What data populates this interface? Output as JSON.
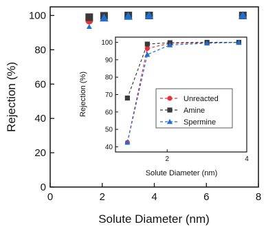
{
  "colors": {
    "Unreacted": "#e8323a",
    "Amine": "#3a3a3a",
    "Spermine": "#1f6fd0"
  },
  "chart_data": [
    {
      "type": "scatter",
      "title": "",
      "xlabel": "Solute Diameter (nm)",
      "ylabel": "Rejection (%)",
      "xlim": [
        0,
        8
      ],
      "ylim": [
        0,
        105
      ],
      "xticks": [
        0,
        2,
        4,
        6,
        8
      ],
      "yticks": [
        0,
        20,
        40,
        60,
        80,
        100
      ],
      "grid": false,
      "series": [
        {
          "name": "Unreacted",
          "marker": "circle",
          "x": [
            1.0,
            1.5,
            2.07,
            3.0,
            3.8,
            7.4
          ],
          "y": [
            42.5,
            97,
            99.5,
            99.8,
            100,
            100
          ]
        },
        {
          "name": "Amine",
          "marker": "square",
          "x": [
            1.0,
            1.5,
            2.07,
            3.0,
            3.8,
            7.4
          ],
          "y": [
            68,
            99,
            99.8,
            100,
            100,
            100
          ]
        },
        {
          "name": "Spermine",
          "marker": "triangle",
          "x": [
            1.0,
            1.5,
            2.07,
            3.0,
            3.8,
            7.4
          ],
          "y": [
            42.5,
            92.5,
            98.5,
            99.5,
            100,
            100
          ]
        }
      ]
    },
    {
      "type": "line",
      "title": "",
      "xlabel": "Solute Diameter (nm)",
      "ylabel": "Rejection (%)",
      "xlim": [
        0.7,
        4.0
      ],
      "ylim": [
        37,
        103
      ],
      "xticks": [
        2,
        4
      ],
      "yticks": [
        40,
        50,
        60,
        70,
        80,
        90,
        100
      ],
      "grid": false,
      "legend_position": "center-right",
      "series": [
        {
          "name": "Unreacted",
          "marker": "circle",
          "x": [
            1.0,
            1.5,
            2.07,
            3.0,
            3.8
          ],
          "y": [
            42.5,
            96.5,
            99.5,
            99.8,
            100
          ]
        },
        {
          "name": "Amine",
          "marker": "square",
          "x": [
            1.0,
            1.5,
            2.07,
            3.0,
            3.8
          ],
          "y": [
            68,
            99,
            99.8,
            100,
            100
          ]
        },
        {
          "name": "Spermine",
          "marker": "triangle",
          "x": [
            1.0,
            1.5,
            2.07,
            3.0,
            3.8
          ],
          "y": [
            42.5,
            93,
            98.5,
            99.5,
            100
          ]
        }
      ]
    }
  ]
}
